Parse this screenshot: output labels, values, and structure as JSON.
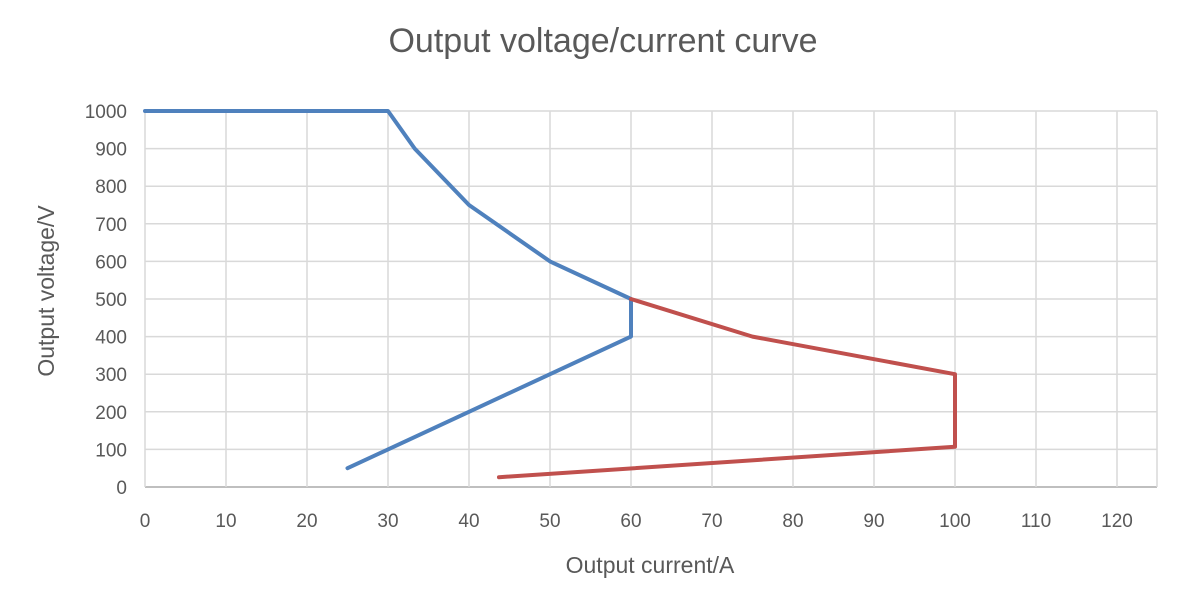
{
  "chart_data": {
    "type": "line",
    "title": "Output voltage/current curve",
    "xlabel": "Output current/A",
    "ylabel": "Output voltage/V",
    "xlim": [
      0,
      125
    ],
    "ylim": [
      0,
      1000
    ],
    "xticks": [
      0,
      10,
      20,
      30,
      40,
      50,
      60,
      70,
      80,
      90,
      100,
      110,
      120
    ],
    "yticks": [
      0,
      100,
      200,
      300,
      400,
      500,
      600,
      700,
      800,
      900,
      1000
    ],
    "grid": true,
    "series": [
      {
        "color": "#4f81bd",
        "x": [
          0,
          30,
          33.3,
          40,
          50,
          60,
          60,
          50,
          40,
          30,
          25
        ],
        "y": [
          1000,
          1000,
          900,
          750,
          600,
          500,
          400,
          300,
          200,
          100,
          50
        ]
      },
      {
        "color": "#c0504d",
        "x": [
          60,
          75,
          100,
          100,
          43.7
        ],
        "y": [
          500,
          400,
          300,
          107,
          26
        ]
      }
    ]
  }
}
